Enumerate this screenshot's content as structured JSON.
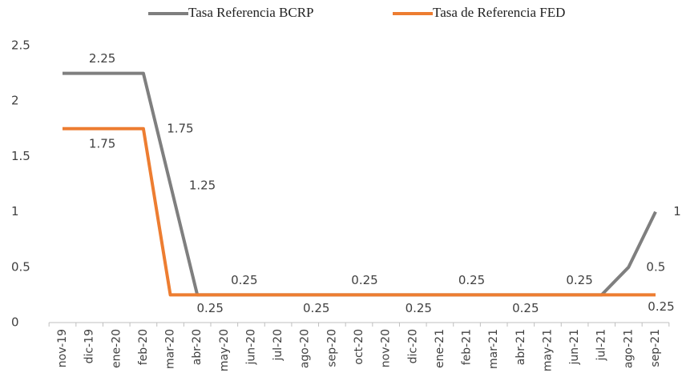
{
  "chart_data": {
    "type": "line",
    "categories": [
      "nov-19",
      "dic-19",
      "ene-20",
      "feb-20",
      "mar-20",
      "abr-20",
      "may-20",
      "jun-20",
      "jul-20",
      "ago-20",
      "sep-20",
      "oct-20",
      "nov-20",
      "dic-20",
      "ene-21",
      "feb-21",
      "mar-21",
      "abr-21",
      "may-21",
      "jun-21",
      "jul-21",
      "ago-21",
      "sep-21"
    ],
    "series": [
      {
        "name": "Tasa Referencia BCRP",
        "color": "#7f7f7f",
        "values": [
          2.25,
          2.25,
          2.25,
          2.25,
          1.25,
          0.25,
          0.25,
          0.25,
          0.25,
          0.25,
          0.25,
          0.25,
          0.25,
          0.25,
          0.25,
          0.25,
          0.25,
          0.25,
          0.25,
          0.25,
          0.25,
          0.5,
          1
        ]
      },
      {
        "name": "Tasa de Referencia FED",
        "color": "#ed7d31",
        "values": [
          1.75,
          1.75,
          1.75,
          1.75,
          0.25,
          0.25,
          0.25,
          0.25,
          0.25,
          0.25,
          0.25,
          0.25,
          0.25,
          0.25,
          0.25,
          0.25,
          0.25,
          0.25,
          0.25,
          0.25,
          0.25,
          0.25,
          0.25
        ]
      }
    ],
    "ylim": [
      0,
      2.5
    ],
    "yticks": [
      0,
      0.5,
      1,
      1.5,
      2,
      2.5
    ],
    "grid": false,
    "legend": "top"
  }
}
